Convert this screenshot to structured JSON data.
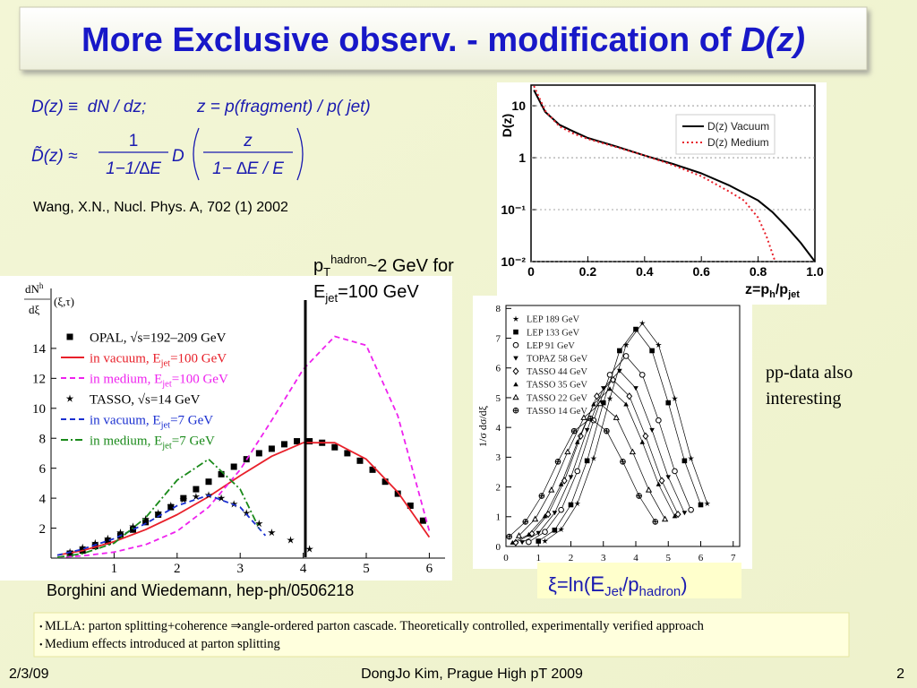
{
  "header": {
    "title": "More Exclusive observ. - modification of ",
    "title_italic": "D(z)"
  },
  "formulas": {
    "line_1": "D(z) ≡  dN / dz;",
    "line_1b": "z = p(fragment) / p( jet)",
    "lhs": "D̃(z) ≈",
    "numerator": "1",
    "denominator": "1−1/∆E",
    "function": "D",
    "inner_numerator": "z",
    "inner_denominator": "1− ∆E / E"
  },
  "citation_1": "Wang, X.N., Nucl. Phys. A, 702 (1) 2002",
  "annotation": {
    "p": "p",
    "p_sub": "T",
    "p_sup": "hadron",
    "rest_1": "~2 GeV for",
    "e": "E",
    "e_sub": "jet",
    "rest_2": "=100 GeV"
  },
  "side_note": [
    "pp-data also",
    "interesting"
  ],
  "citation_2": "Borghini and Wiedemann, hep-ph/0506218",
  "xi_label": [
    "ξ=ln(",
    "E",
    "Jet",
    "/p",
    "hadron",
    ")"
  ],
  "bullets": [
    "MLLA: parton splitting+coherence ⇒angle-ordered parton cascade. Theoretically controlled, experimentally verified approach",
    "Medium effects introduced at parton splitting"
  ],
  "footer": {
    "date": "2/3/09",
    "center": "DongJo Kim, Prague High pT 2009",
    "page": "2"
  },
  "chart_data": [
    {
      "type": "line",
      "ylabel": "D(z)",
      "xlabel": [
        "z=p",
        "h",
        "/p",
        "jet"
      ],
      "xlim": [
        0,
        1
      ],
      "ylim": [
        0.01,
        25
      ],
      "log_y": true,
      "xticks": [
        0,
        0.2,
        0.4,
        0.6,
        0.8,
        {
          "value": 1,
          "label": "1.0"
        }
      ],
      "yticks": [
        {
          "value": 0.01,
          "label": "10⁻²"
        },
        {
          "value": 0.1,
          "label": "10⁻¹"
        },
        1,
        10
      ],
      "grid": true,
      "legend": "upper right",
      "series": [
        {
          "name": "D(z) Vacuum",
          "color": "#000000",
          "style": "solid",
          "x": [
            0.01,
            0.05,
            0.1,
            0.15,
            0.2,
            0.3,
            0.4,
            0.5,
            0.6,
            0.7,
            0.8,
            0.85,
            0.9,
            0.95,
            1.0
          ],
          "values": [
            20,
            7.6,
            4.3,
            3.2,
            2.4,
            1.65,
            1.1,
            0.76,
            0.5,
            0.29,
            0.15,
            0.09,
            0.047,
            0.023,
            0.01
          ]
        },
        {
          "name": "D(z) Medium",
          "color": "#e8202a",
          "style": "dotted",
          "x": [
            0.01,
            0.05,
            0.1,
            0.15,
            0.2,
            0.3,
            0.4,
            0.5,
            0.6,
            0.7,
            0.75,
            0.8,
            0.83,
            0.86
          ],
          "values": [
            24,
            8,
            4.0,
            2.9,
            2.3,
            1.6,
            1.1,
            0.72,
            0.44,
            0.22,
            0.15,
            0.07,
            0.03,
            0.01
          ]
        }
      ]
    },
    {
      "type": "line",
      "ylabel": [
        "dN",
        "h",
        "dξ",
        "(ξ,τ)"
      ],
      "xlim": [
        0,
        6.25
      ],
      "ylim": [
        0,
        18
      ],
      "xticks": [
        1,
        2,
        3,
        4,
        5,
        6
      ],
      "yticks": [
        2,
        4,
        6,
        8,
        10,
        12,
        14
      ],
      "legend": "upper left",
      "series": [
        {
          "name": "OPAL, √s=192–209 GeV",
          "color": "#000000",
          "marker": "square",
          "x": [
            0.3,
            0.5,
            0.7,
            0.9,
            1.1,
            1.3,
            1.5,
            1.7,
            1.9,
            2.1,
            2.3,
            2.5,
            2.7,
            2.9,
            3.1,
            3.3,
            3.5,
            3.7,
            3.9,
            4.1,
            4.3,
            4.5,
            4.7,
            4.9,
            5.1,
            5.3,
            5.5,
            5.7,
            5.9
          ],
          "values": [
            0.3,
            0.5,
            0.8,
            1.1,
            1.5,
            1.9,
            2.4,
            2.9,
            3.4,
            4.0,
            4.6,
            5.1,
            5.6,
            6.1,
            6.6,
            7.0,
            7.3,
            7.6,
            7.8,
            7.8,
            7.7,
            7.4,
            7.0,
            6.5,
            5.9,
            5.1,
            4.3,
            3.5,
            2.5
          ]
        },
        {
          "name": "in vacuum, Ejet=100 GeV",
          "color": "#e8202a",
          "style": "solid",
          "x": [
            0.1,
            0.5,
            1,
            1.5,
            2,
            2.5,
            3,
            3.5,
            4,
            4.5,
            5,
            5.5,
            6
          ],
          "values": [
            0.2,
            0.5,
            1.1,
            1.9,
            2.9,
            4.1,
            5.5,
            6.8,
            7.7,
            7.7,
            6.6,
            4.4,
            1.4
          ]
        },
        {
          "name": "in medium, Ejet=100 GeV",
          "color": "#ee22ee",
          "style": "dashed",
          "x": [
            0.1,
            0.5,
            1,
            1.5,
            2,
            2.5,
            3,
            3.5,
            4,
            4.5,
            5,
            5.5,
            6
          ],
          "values": [
            0.05,
            0.15,
            0.4,
            0.9,
            1.8,
            3.4,
            5.9,
            9.2,
            12.6,
            14.8,
            14.2,
            9.5,
            1.8
          ]
        },
        {
          "name": "TASSO, √s=14 GeV",
          "color": "#000000",
          "marker": "star",
          "x": [
            0.3,
            0.5,
            0.7,
            0.9,
            1.1,
            1.3,
            1.5,
            1.7,
            1.9,
            2.1,
            2.3,
            2.5,
            2.7,
            2.9,
            3.1,
            3.3,
            3.5,
            3.8,
            4.1
          ],
          "values": [
            0.4,
            0.7,
            1.0,
            1.3,
            1.7,
            2.1,
            2.6,
            3.0,
            3.5,
            3.9,
            4.1,
            4.2,
            4.0,
            3.6,
            3.0,
            2.3,
            1.7,
            1.2,
            0.6
          ]
        },
        {
          "name": "in vacuum, Ejet=7 GeV",
          "color": "#1a2fd0",
          "style": "dashed",
          "x": [
            0.1,
            0.5,
            1,
            1.5,
            2,
            2.5,
            3,
            3.4
          ],
          "values": [
            0.2,
            0.6,
            1.3,
            2.3,
            3.5,
            4.2,
            3.4,
            1.5
          ]
        },
        {
          "name": "in medium, Ejet=7 GeV",
          "color": "#1a8a1a",
          "style": "dashdot",
          "x": [
            0.1,
            0.5,
            1,
            1.5,
            2,
            2.5,
            3,
            3.3
          ],
          "values": [
            0.05,
            0.3,
            1.0,
            2.7,
            5.2,
            6.6,
            4.6,
            2.0
          ]
        }
      ]
    },
    {
      "type": "scatter",
      "ylabel": "1/σ dσ/dξ",
      "connect": true,
      "xlim": [
        0,
        7.2
      ],
      "ylim": [
        0,
        8.1
      ],
      "xticks": [
        0,
        1,
        2,
        3,
        4,
        5,
        6,
        7
      ],
      "yticks": [
        0,
        1,
        2,
        3,
        4,
        5,
        6,
        7,
        8
      ],
      "legend": "upper left",
      "series": [
        {
          "name": "LEP 189 GeV",
          "color": "#000000",
          "marker": "star",
          "x": [
            1.2,
            1.7,
            2.2,
            2.7,
            3.2,
            3.7,
            4.2,
            4.7,
            5.2,
            5.7,
            6.2
          ],
          "values": [
            0.18,
            0.57,
            1.44,
            2.96,
            4.97,
            6.77,
            7.5,
            6.77,
            4.97,
            2.96,
            1.44
          ]
        },
        {
          "name": "LEP 133 GeV",
          "color": "#000000",
          "marker": "square",
          "x": [
            1.0,
            1.5,
            2.0,
            2.5,
            3.0,
            3.5,
            4.0,
            4.5,
            5.0,
            5.5,
            6.0
          ],
          "values": [
            0.18,
            0.55,
            1.4,
            2.88,
            4.83,
            6.58,
            7.3,
            6.58,
            4.83,
            2.88,
            1.4
          ]
        },
        {
          "name": "LEP 91 GeV",
          "color": "#000000",
          "marker": "circle-open",
          "x": [
            0.7,
            1.2,
            1.7,
            2.2,
            2.7,
            3.2,
            3.7,
            4.2,
            4.7,
            5.2,
            5.7
          ],
          "values": [
            0.15,
            0.49,
            1.23,
            2.53,
            4.24,
            5.77,
            6.4,
            5.77,
            4.24,
            2.53,
            1.23
          ]
        },
        {
          "name": "TOPAZ 58 GeV",
          "color": "#000000",
          "marker": "triangle-down",
          "x": [
            0.5,
            1.0,
            1.5,
            2.0,
            2.5,
            3.0,
            3.5,
            4.0,
            4.5,
            5.0,
            5.5
          ],
          "values": [
            0.14,
            0.45,
            1.13,
            2.33,
            3.91,
            5.32,
            5.9,
            5.32,
            3.91,
            2.33,
            1.13
          ]
        },
        {
          "name": "TASSO 44 GeV",
          "color": "#000000",
          "marker": "diamond-open",
          "x": [
            0.3,
            0.8,
            1.3,
            1.8,
            2.3,
            2.8,
            3.3,
            3.8,
            4.3,
            4.8,
            5.3
          ],
          "values": [
            0.13,
            0.43,
            1.08,
            2.21,
            3.71,
            5.05,
            5.6,
            5.05,
            3.71,
            2.21,
            1.08
          ]
        },
        {
          "name": "TASSO 35 GeV",
          "color": "#000000",
          "marker": "triangle",
          "x": [
            0.2,
            0.7,
            1.2,
            1.7,
            2.2,
            2.7,
            3.2,
            3.7,
            4.2,
            4.7,
            5.2
          ],
          "values": [
            0.13,
            0.4,
            1.02,
            2.09,
            3.51,
            4.78,
            5.3,
            4.78,
            3.51,
            2.09,
            1.02
          ]
        },
        {
          "name": "TASSO 22 GeV",
          "color": "#000000",
          "marker": "triangle-open",
          "x": [
            0.4,
            0.9,
            1.4,
            1.9,
            2.4,
            2.9,
            3.4,
            3.9,
            4.4,
            4.9
          ],
          "values": [
            0.36,
            0.92,
            1.9,
            3.18,
            4.33,
            4.8,
            4.33,
            3.18,
            1.9,
            0.92
          ]
        },
        {
          "name": "TASSO 14 GeV",
          "color": "#000000",
          "marker": "cross-circle",
          "x": [
            0.1,
            0.6,
            1.1,
            1.6,
            2.1,
            2.6,
            3.1,
            3.6,
            4.1,
            4.6
          ],
          "values": [
            0.33,
            0.83,
            1.7,
            2.85,
            3.88,
            4.3,
            3.88,
            2.85,
            1.7,
            0.83
          ]
        }
      ]
    }
  ]
}
